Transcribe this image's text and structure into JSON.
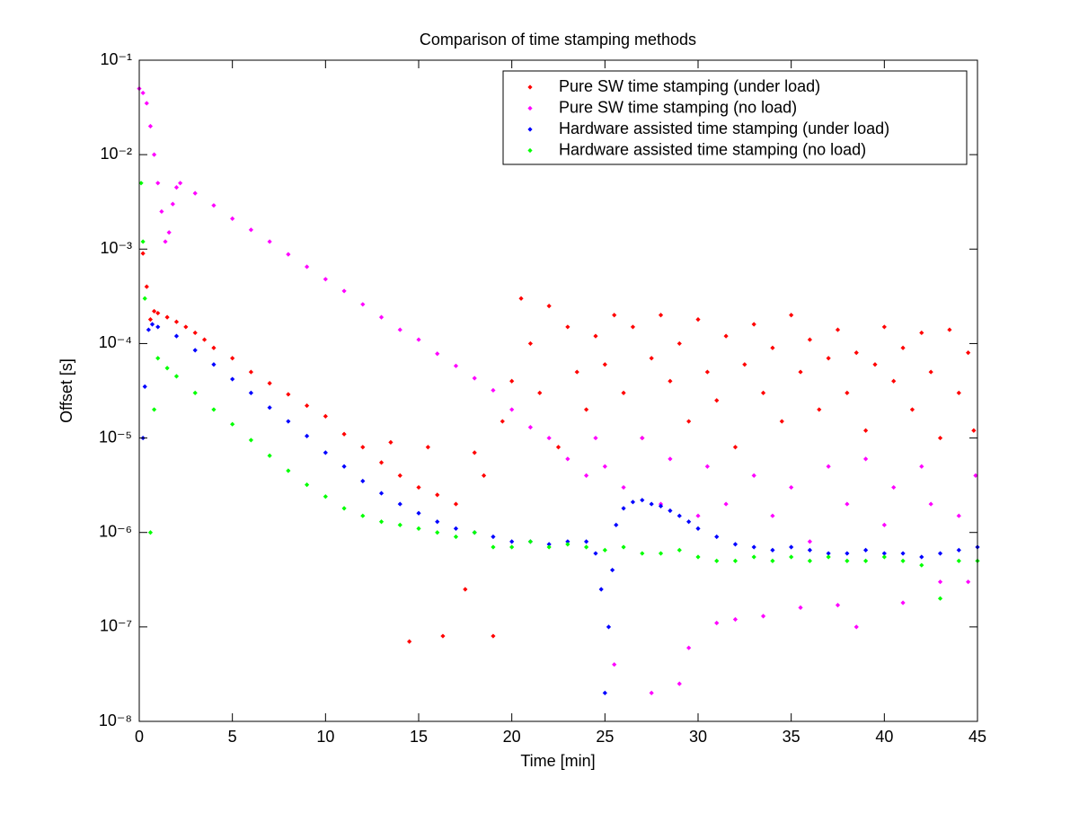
{
  "chart_data": {
    "type": "scatter",
    "title": "Comparison of time stamping methods",
    "x_label": "Time [min]",
    "y_label": "Offset [s]",
    "log_y": true,
    "legend": "upper right",
    "xlim": [
      0,
      45
    ],
    "xticks": [
      0,
      5,
      10,
      15,
      20,
      25,
      30,
      35,
      40,
      45
    ],
    "ylim": [
      1e-08,
      0.1
    ],
    "yticks": [
      {
        "value": 1e-08,
        "label": "10⁻⁸"
      },
      {
        "value": 1e-07,
        "label": "10⁻⁷"
      },
      {
        "value": 1e-06,
        "label": "10⁻⁶"
      },
      {
        "value": 1e-05,
        "label": "10⁻⁵"
      },
      {
        "value": 0.0001,
        "label": "10⁻⁴"
      },
      {
        "value": 0.001,
        "label": "10⁻³"
      },
      {
        "value": 0.01,
        "label": "10⁻²"
      },
      {
        "value": 0.1,
        "label": "10⁻¹"
      }
    ],
    "series": [
      {
        "name": "Pure SW time stamping (under load)",
        "color": "#ff0000",
        "x": [
          0.2,
          0.4,
          0.6,
          0.8,
          1.0,
          1.5,
          2,
          2.5,
          3,
          3.5,
          4,
          5,
          6,
          7,
          8,
          9,
          10,
          11,
          12,
          13,
          13.5,
          14,
          14.5,
          15,
          15.5,
          16,
          16.3,
          17,
          17.5,
          18,
          18.5,
          19,
          19.5,
          20,
          20.5,
          21,
          21.5,
          22,
          22.5,
          23,
          23.5,
          24,
          24.5,
          25,
          25.5,
          26,
          26.5,
          27,
          27.5,
          28,
          28.5,
          29,
          29.5,
          30,
          30.5,
          31,
          31.5,
          32,
          32.5,
          33,
          33.5,
          34,
          34.5,
          35,
          35.5,
          36,
          36.5,
          37,
          37.5,
          38,
          38.5,
          39,
          39.5,
          40,
          40.5,
          41,
          41.5,
          42,
          42.5,
          43,
          43.5,
          44,
          44.5,
          44.8
        ],
        "values": [
          0.0009,
          0.0004,
          0.00018,
          0.00022,
          0.00021,
          0.00019,
          0.00017,
          0.00015,
          0.00013,
          0.00011,
          9e-05,
          7e-05,
          5e-05,
          3.8e-05,
          2.9e-05,
          2.2e-05,
          1.7e-05,
          1.1e-05,
          8e-06,
          5.5e-06,
          9e-06,
          4e-06,
          7e-08,
          3e-06,
          8e-06,
          2.5e-06,
          8e-08,
          2e-06,
          2.5e-07,
          7e-06,
          4e-06,
          8e-08,
          1.5e-05,
          4e-05,
          0.0003,
          0.0001,
          3e-05,
          0.00025,
          8e-06,
          0.00015,
          5e-05,
          2e-05,
          0.00012,
          6e-05,
          0.0002,
          3e-05,
          0.00015,
          1e-05,
          7e-05,
          0.0002,
          4e-05,
          0.0001,
          1.5e-05,
          0.00018,
          5e-05,
          2.5e-05,
          0.00012,
          8e-06,
          6e-05,
          0.00016,
          3e-05,
          9e-05,
          1.5e-05,
          0.0002,
          5e-05,
          0.00011,
          2e-05,
          7e-05,
          0.00014,
          3e-05,
          8e-05,
          1.2e-05,
          6e-05,
          0.00015,
          4e-05,
          9e-05,
          2e-05,
          0.00013,
          5e-05,
          1e-05,
          0.00014,
          3e-05,
          8e-05,
          1.2e-05
        ]
      },
      {
        "name": "Pure SW time stamping (no load)",
        "color": "#ff00ff",
        "x": [
          0,
          0.2,
          0.4,
          0.6,
          0.8,
          1.0,
          1.2,
          1.4,
          1.6,
          1.8,
          2.0,
          2.2,
          3,
          4,
          5,
          6,
          7,
          8,
          9,
          10,
          11,
          12,
          13,
          14,
          15,
          16,
          17,
          18,
          19,
          20,
          21,
          22,
          23,
          24,
          24.5,
          25,
          25.5,
          26,
          27,
          27.5,
          28,
          28.5,
          29,
          29.5,
          30,
          30.5,
          31,
          31.5,
          32,
          33,
          33.5,
          34,
          35,
          35.5,
          36,
          37,
          37.5,
          38,
          38.5,
          39,
          40,
          40.5,
          41,
          42,
          42.5,
          43,
          44,
          44.5,
          44.9
        ],
        "values": [
          0.05,
          0.045,
          0.035,
          0.02,
          0.01,
          0.005,
          0.0025,
          0.0012,
          0.0015,
          0.003,
          0.0045,
          0.005,
          0.0039,
          0.0029,
          0.0021,
          0.0016,
          0.0012,
          0.00088,
          0.00065,
          0.00048,
          0.00036,
          0.00026,
          0.00019,
          0.00014,
          0.00011,
          7.8e-05,
          5.8e-05,
          4.3e-05,
          3.2e-05,
          2e-05,
          1.3e-05,
          1e-05,
          6e-06,
          4e-06,
          1e-05,
          5e-06,
          4e-08,
          3e-06,
          1e-05,
          2e-08,
          2e-06,
          6e-06,
          2.5e-08,
          6e-08,
          1.5e-06,
          5e-06,
          1.1e-07,
          2e-06,
          1.2e-07,
          4e-06,
          1.3e-07,
          1.5e-06,
          3e-06,
          1.6e-07,
          8e-07,
          5e-06,
          1.7e-07,
          2e-06,
          1e-07,
          6e-06,
          1.2e-06,
          3e-06,
          1.8e-07,
          5e-06,
          2e-06,
          3e-07,
          1.5e-06,
          3e-07,
          4e-06
        ]
      },
      {
        "name": "Hardware assisted time stamping (under load)",
        "color": "#0000ff",
        "x": [
          0.2,
          0.3,
          0.5,
          0.7,
          1,
          2,
          3,
          4,
          5,
          6,
          7,
          8,
          9,
          10,
          11,
          12,
          13,
          14,
          15,
          16,
          17,
          18,
          19,
          20,
          21,
          22,
          23,
          24,
          24.5,
          24.8,
          25,
          25.2,
          25.4,
          25.6,
          26,
          26.5,
          27,
          27.5,
          28,
          28.5,
          29,
          29.5,
          30,
          31,
          32,
          33,
          34,
          35,
          36,
          37,
          38,
          39,
          40,
          41,
          42,
          43,
          44,
          45
        ],
        "values": [
          1e-05,
          3.5e-05,
          0.00014,
          0.00016,
          0.00015,
          0.00012,
          8.5e-05,
          6e-05,
          4.2e-05,
          3e-05,
          2.1e-05,
          1.5e-05,
          1.05e-05,
          7e-06,
          5e-06,
          3.5e-06,
          2.6e-06,
          2e-06,
          1.6e-06,
          1.3e-06,
          1.1e-06,
          1e-06,
          9e-07,
          8e-07,
          8e-07,
          7.5e-07,
          8e-07,
          8e-07,
          6e-07,
          2.5e-07,
          2e-08,
          1e-07,
          4e-07,
          1.2e-06,
          1.8e-06,
          2.1e-06,
          2.2e-06,
          2e-06,
          1.9e-06,
          1.7e-06,
          1.5e-06,
          1.3e-06,
          1.1e-06,
          9e-07,
          7.5e-07,
          7e-07,
          6.5e-07,
          7e-07,
          6.5e-07,
          6e-07,
          6e-07,
          6.5e-07,
          6e-07,
          6e-07,
          5.5e-07,
          6e-07,
          6.5e-07,
          7e-07
        ]
      },
      {
        "name": "Hardware assisted time stamping (no load)",
        "color": "#00ff00",
        "x": [
          0.1,
          0.2,
          0.3,
          0.6,
          0.8,
          1,
          1.5,
          2,
          3,
          4,
          5,
          6,
          7,
          8,
          9,
          10,
          11,
          12,
          13,
          14,
          15,
          16,
          17,
          18,
          19,
          20,
          21,
          22,
          23,
          24,
          25,
          26,
          27,
          28,
          29,
          30,
          31,
          32,
          33,
          34,
          35,
          36,
          37,
          38,
          39,
          40,
          41,
          42,
          43,
          44,
          45
        ],
        "values": [
          0.005,
          0.0012,
          0.0003,
          1e-06,
          2e-05,
          7e-05,
          5.5e-05,
          4.5e-05,
          3e-05,
          2e-05,
          1.4e-05,
          9.5e-06,
          6.5e-06,
          4.5e-06,
          3.2e-06,
          2.4e-06,
          1.8e-06,
          1.5e-06,
          1.3e-06,
          1.2e-06,
          1.1e-06,
          1e-06,
          9e-07,
          1e-06,
          7e-07,
          7e-07,
          8e-07,
          7e-07,
          7.5e-07,
          7e-07,
          6.5e-07,
          7e-07,
          6e-07,
          6e-07,
          6.5e-07,
          5.5e-07,
          5e-07,
          5e-07,
          5.5e-07,
          5e-07,
          5.5e-07,
          5e-07,
          5.5e-07,
          5e-07,
          5e-07,
          5.5e-07,
          5e-07,
          4.5e-07,
          2e-07,
          5e-07,
          5e-07
        ]
      }
    ]
  }
}
